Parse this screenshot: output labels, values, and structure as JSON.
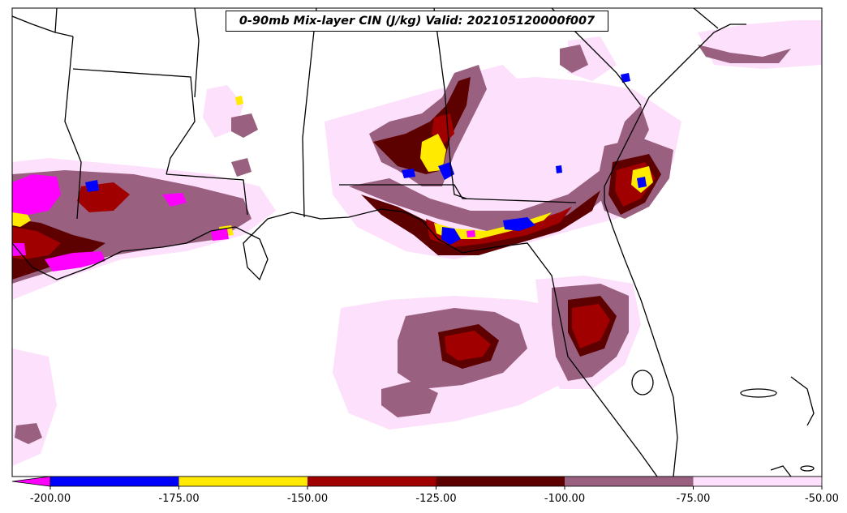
{
  "map": {
    "title": "0-90mb Mix-layer CIN (J/kg) Valid: 202105120000f007",
    "colors": {
      "magenta": "#ff00ff",
      "blue": "#0000ff",
      "yellow": "#ffea00",
      "red": "#a00000",
      "darkred": "#5c0000",
      "mauve": "#9a6080",
      "pink": "#fde0fb",
      "boundary": "#000000"
    }
  },
  "colorbar": {
    "segments": [
      {
        "from": -200,
        "to": -175,
        "color": "#0000ff"
      },
      {
        "from": -175,
        "to": -150,
        "color": "#ffea00"
      },
      {
        "from": -150,
        "to": -125,
        "color": "#a00000"
      },
      {
        "from": -125,
        "to": -100,
        "color": "#5c0000"
      },
      {
        "from": -100,
        "to": -75,
        "color": "#9a6080"
      },
      {
        "from": -75,
        "to": -50,
        "color": "#fde0fb"
      }
    ],
    "extend_min_color": "#ff00ff",
    "ticks": [
      "-200.00",
      "-175.00",
      "-150.00",
      "-125.00",
      "-100.00",
      "-75.00",
      "-50.00"
    ]
  }
}
